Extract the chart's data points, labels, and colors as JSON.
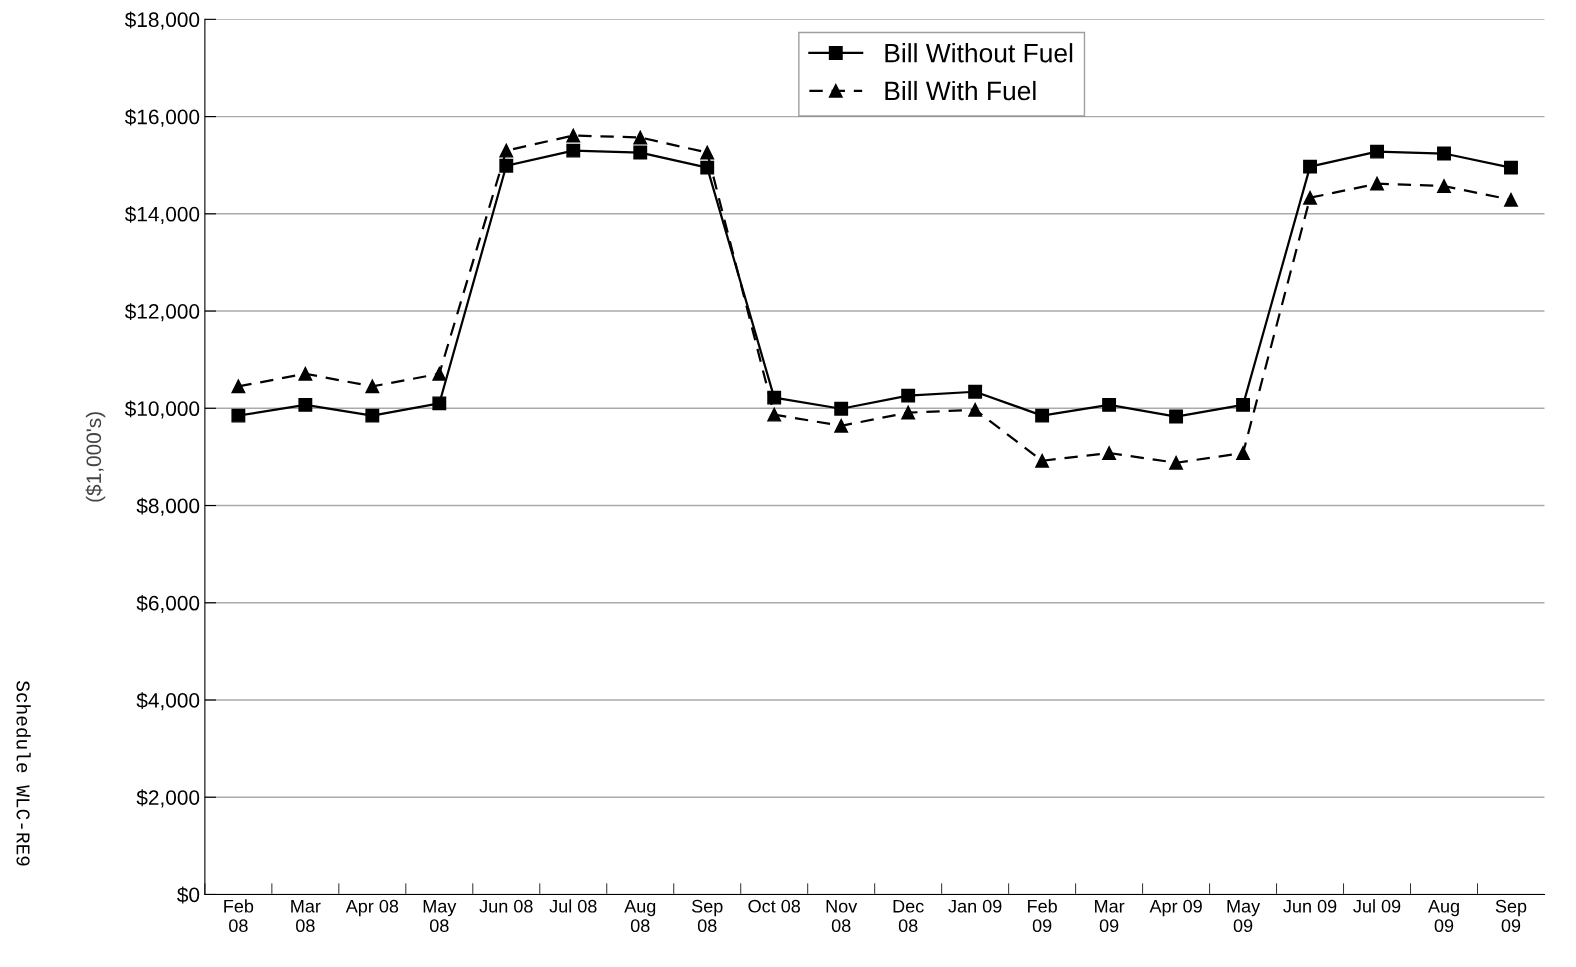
{
  "chart_data": {
    "type": "line",
    "ylabel": "($1,000's)",
    "categories": [
      "Feb\n08",
      "Mar\n08",
      "Apr 08",
      "May\n08",
      "Jun 08",
      "Jul 08",
      "Aug\n08",
      "Sep\n08",
      "Oct 08",
      "Nov\n08",
      "Dec\n08",
      "Jan 09",
      "Feb\n09",
      "Mar\n09",
      "Apr 09",
      "May\n09",
      "Jun 09",
      "Jul 09",
      "Aug\n09",
      "Sep\n09"
    ],
    "series": [
      {
        "name": "Bill Without Fuel",
        "color": "#000000",
        "marker": "square",
        "line_style": "solid",
        "values": [
          9850,
          10070,
          9850,
          10100,
          14990,
          15300,
          15260,
          14950,
          10220,
          9990,
          10260,
          10340,
          9850,
          10070,
          9830,
          10070,
          14970,
          15280,
          15240,
          14950
        ]
      },
      {
        "name": "Bill With Fuel",
        "color": "#000000",
        "marker": "triangle",
        "line_style": "dashed",
        "values": [
          10450,
          10710,
          10450,
          10710,
          15300,
          15610,
          15570,
          15260,
          9870,
          9640,
          9910,
          9970,
          8920,
          9080,
          8880,
          9080,
          14330,
          14620,
          14570,
          14290
        ]
      }
    ],
    "ylim": [
      0,
      18000
    ],
    "yticks": [
      {
        "value": 0,
        "label": "$0"
      },
      {
        "value": 2000,
        "label": "$2,000"
      },
      {
        "value": 4000,
        "label": "$4,000"
      },
      {
        "value": 6000,
        "label": "$6,000"
      },
      {
        "value": 8000,
        "label": "$8,000"
      },
      {
        "value": 10000,
        "label": "$10,000"
      },
      {
        "value": 12000,
        "label": "$12,000"
      },
      {
        "value": 14000,
        "label": "$14,000"
      },
      {
        "value": 16000,
        "label": "$16,000"
      },
      {
        "value": 18000,
        "label": "$18,000"
      }
    ],
    "grid": "y",
    "legend": "top center",
    "annotations": [
      "Schedule WLC-RE9"
    ]
  }
}
